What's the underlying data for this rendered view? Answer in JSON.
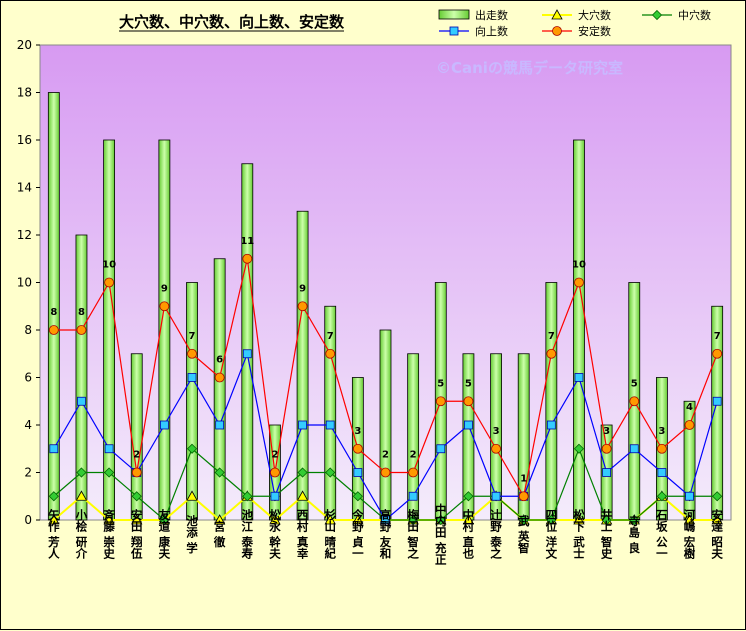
{
  "chart_data": {
    "type": "bar",
    "title": "大穴数、中穴数、向上数、安定数",
    "watermark": "©Caniの競馬データ研究室",
    "ylim": [
      0,
      20
    ],
    "yticks": [
      0,
      2,
      4,
      6,
      8,
      10,
      12,
      14,
      16,
      18,
      20
    ],
    "grid": false,
    "legend_position": "top-right",
    "categories": [
      "矢作 芳人",
      "小桧 研介",
      "斉藤 崇史",
      "安田 翔伍",
      "友道 康夫",
      "池添 学",
      "宮 徹",
      "池江 泰寿",
      "松永 幹夫",
      "西村 真幸",
      "杉山 晴紀",
      "今野 貞一",
      "高野 友和",
      "梅田 智之",
      "中内田 充正",
      "中村 直也",
      "辻野 泰之",
      "武 英智",
      "四位 洋文",
      "松下 武士",
      "井上 智史",
      "寺島 良",
      "石坂 公一",
      "河嶋 宏樹",
      "安達 昭夫"
    ],
    "series": [
      {
        "name": "出走数",
        "type": "bar",
        "color": "#99ff66",
        "values": [
          18,
          12,
          16,
          7,
          16,
          10,
          11,
          15,
          4,
          13,
          9,
          6,
          8,
          7,
          10,
          7,
          7,
          7,
          10,
          16,
          4,
          10,
          6,
          5,
          9
        ]
      },
      {
        "name": "大穴数",
        "type": "line",
        "color": "#ffff00",
        "values": [
          0,
          1,
          0,
          0,
          0,
          1,
          0,
          1,
          0,
          1,
          0,
          0,
          0,
          0,
          0,
          0,
          1,
          0,
          0,
          0,
          0,
          0,
          1,
          0,
          0
        ]
      },
      {
        "name": "中穴数",
        "type": "line",
        "color": "#008000",
        "values": [
          1,
          2,
          2,
          1,
          0,
          3,
          2,
          1,
          1,
          2,
          2,
          1,
          0,
          0,
          0,
          1,
          1,
          0,
          0,
          3,
          0,
          0,
          1,
          1,
          1
        ]
      },
      {
        "name": "向上数",
        "type": "line",
        "color": "#0000ff",
        "values": [
          3,
          5,
          3,
          2,
          4,
          6,
          4,
          7,
          1,
          4,
          4,
          2,
          0,
          1,
          3,
          4,
          1,
          1,
          4,
          6,
          2,
          3,
          2,
          1,
          5
        ]
      },
      {
        "name": "安定数",
        "type": "line",
        "color": "#ff0000",
        "values": [
          8,
          8,
          10,
          2,
          9,
          7,
          6,
          11,
          2,
          9,
          7,
          3,
          2,
          2,
          5,
          5,
          3,
          1,
          7,
          10,
          3,
          5,
          3,
          4,
          7
        ],
        "labeled": true
      }
    ]
  }
}
